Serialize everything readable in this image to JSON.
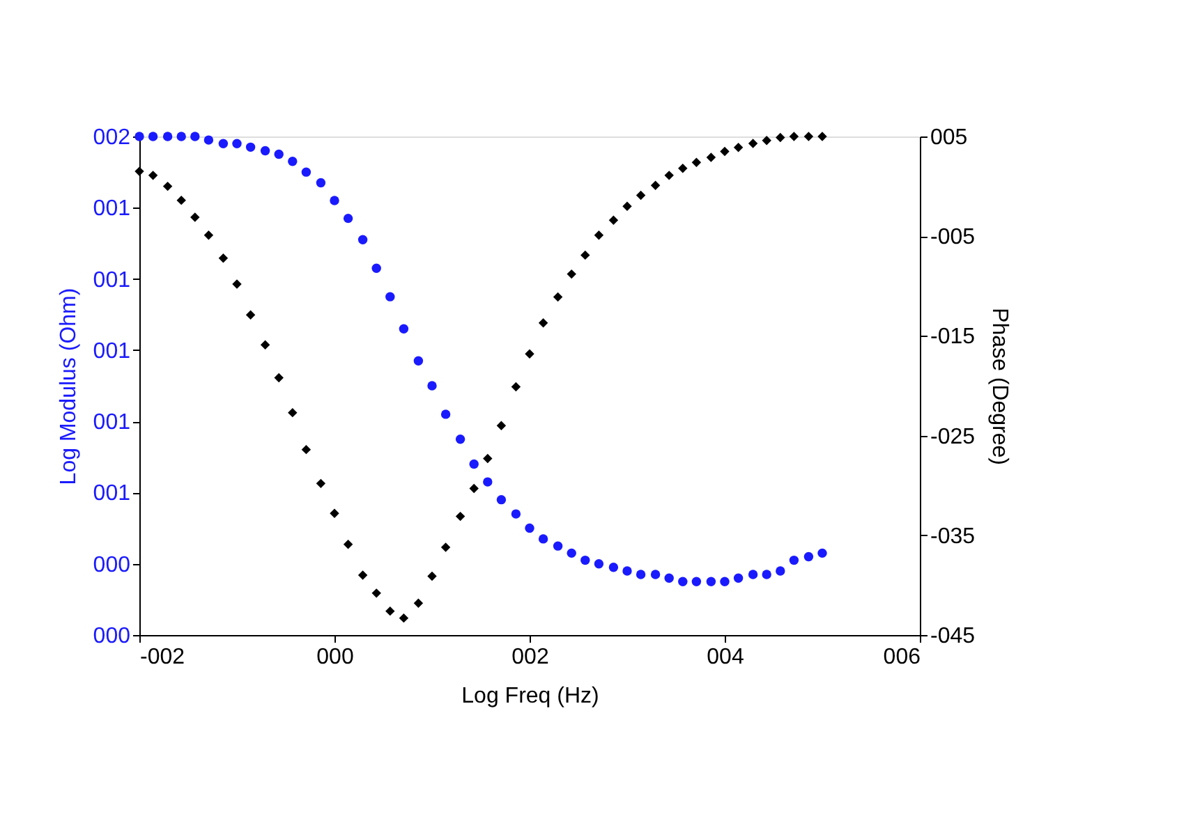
{
  "chart_data": {
    "type": "scatter",
    "xlabel": "Log Freq (Hz)",
    "ylabel": "Log Modulus  (Ohm)",
    "y2label": "Phase (Degree)",
    "x": [
      -2,
      -1.86,
      -1.71,
      -1.57,
      -1.43,
      -1.29,
      -1.14,
      -1,
      -0.86,
      -0.71,
      -0.57,
      -0.43,
      -0.29,
      -0.14,
      0,
      0.14,
      0.29,
      0.43,
      0.57,
      0.71,
      0.86,
      1,
      1.14,
      1.29,
      1.43,
      1.57,
      1.71,
      1.86,
      2,
      2.14,
      2.29,
      2.43,
      2.57,
      2.71,
      2.86,
      3,
      3.14,
      3.29,
      3.43,
      3.57,
      3.71,
      3.86,
      4,
      4.14,
      4.29,
      4.43,
      4.57,
      4.71,
      4.86,
      5
    ],
    "xlim": [
      -2,
      6
    ],
    "xticks": [
      {
        "value": -2,
        "label": "-002"
      },
      {
        "value": 0,
        "label": "000"
      },
      {
        "value": 2,
        "label": "002"
      },
      {
        "value": 4,
        "label": "004"
      },
      {
        "value": 6,
        "label": "006"
      }
    ],
    "ylim": [
      0.2,
      1.6
    ],
    "yticks": [
      {
        "value": 0.2,
        "label": "000"
      },
      {
        "value": 0.4,
        "label": "000"
      },
      {
        "value": 0.6,
        "label": "001"
      },
      {
        "value": 0.8,
        "label": "001"
      },
      {
        "value": 1.0,
        "label": "001"
      },
      {
        "value": 1.2,
        "label": "001"
      },
      {
        "value": 1.4,
        "label": "001"
      },
      {
        "value": 1.6,
        "label": "002"
      }
    ],
    "y2lim": [
      -45,
      5
    ],
    "y2ticks": [
      {
        "value": 5,
        "label": "005"
      },
      {
        "value": -5,
        "label": "-005"
      },
      {
        "value": -15,
        "label": "-015"
      },
      {
        "value": -25,
        "label": "-025"
      },
      {
        "value": -35,
        "label": "-035"
      },
      {
        "value": -45,
        "label": "-045"
      }
    ],
    "grid": false,
    "series": [
      {
        "color": "#1a1aff",
        "marker": "circle",
        "values": [
          1.6,
          1.6,
          1.6,
          1.6,
          1.6,
          1.59,
          1.58,
          1.58,
          1.57,
          1.56,
          1.55,
          1.53,
          1.5,
          1.47,
          1.42,
          1.37,
          1.31,
          1.23,
          1.15,
          1.06,
          0.97,
          0.9,
          0.82,
          0.75,
          0.68,
          0.63,
          0.58,
          0.54,
          0.5,
          0.47,
          0.45,
          0.43,
          0.41,
          0.4,
          0.39,
          0.38,
          0.37,
          0.37,
          0.36,
          0.35,
          0.35,
          0.35,
          0.35,
          0.36,
          0.37,
          0.37,
          0.38,
          0.41,
          0.42,
          0.43
        ]
      },
      {
        "color": "#000000",
        "marker": "diamond",
        "axis": "y2",
        "values": [
          1.5,
          1.1,
          0.0,
          -1.4,
          -3.1,
          -4.9,
          -7.2,
          -9.8,
          -12.9,
          -15.9,
          -19.2,
          -22.7,
          -26.4,
          -29.8,
          -32.8,
          -35.9,
          -39.0,
          -40.8,
          -42.6,
          -43.3,
          -41.8,
          -39.1,
          -36.2,
          -33.1,
          -30.3,
          -27.3,
          -24.0,
          -20.1,
          -16.8,
          -13.7,
          -11.1,
          -8.8,
          -6.9,
          -4.9,
          -3.4,
          -2.0,
          -0.9,
          0.1,
          1.1,
          1.8,
          2.4,
          2.9,
          3.5,
          3.9,
          4.3,
          4.6,
          4.9,
          5.0,
          5.0,
          5.0
        ]
      }
    ]
  }
}
